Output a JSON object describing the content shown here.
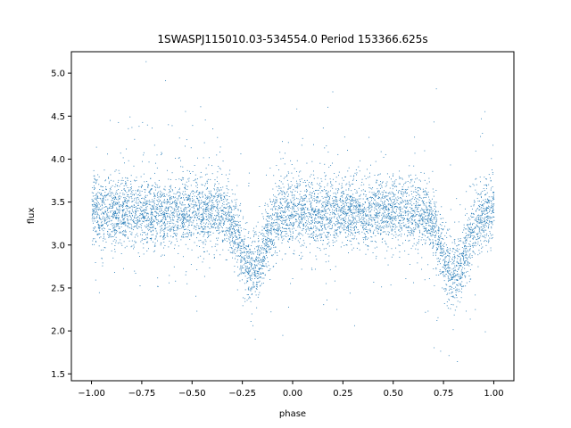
{
  "chart_data": {
    "type": "scatter",
    "title": "1SWASPJ115010.03-534554.0 Period 153366.625s",
    "xlabel": "phase",
    "ylabel": "flux",
    "xlim": [
      -1.1,
      1.1
    ],
    "ylim": [
      1.42,
      5.25
    ],
    "x_ticks": [
      -1.0,
      -0.75,
      -0.5,
      -0.25,
      0.0,
      0.25,
      0.5,
      0.75,
      1.0
    ],
    "x_tick_labels": [
      "−1.00",
      "−0.75",
      "−0.50",
      "−0.25",
      "0.00",
      "0.25",
      "0.50",
      "0.75",
      "1.00"
    ],
    "y_ticks": [
      1.5,
      2.0,
      2.5,
      3.0,
      3.5,
      4.0,
      4.5,
      5.0
    ],
    "y_tick_labels": [
      "1.5",
      "2.0",
      "2.5",
      "3.0",
      "3.5",
      "4.0",
      "4.5",
      "5.0"
    ],
    "grid": false,
    "series": [
      {
        "color": "#1f77b4",
        "phase_range": [
          -1.0,
          1.0
        ],
        "baseline_flux": 3.4,
        "scatter_sd": 0.2,
        "eclipse_minima": [
          {
            "phase": -0.2,
            "flux": 2.7
          },
          {
            "phase": 0.8,
            "flux": 2.7
          }
        ],
        "eclipse_half_width": 0.06,
        "x": [
          -1.0,
          -0.9,
          -0.8,
          -0.7,
          -0.6,
          -0.5,
          -0.4,
          -0.3,
          -0.25,
          -0.22,
          -0.2,
          -0.18,
          -0.15,
          -0.1,
          0.0,
          0.1,
          0.2,
          0.3,
          0.4,
          0.5,
          0.6,
          0.7,
          0.75,
          0.78,
          0.8,
          0.82,
          0.85,
          0.9,
          1.0
        ],
        "y": [
          3.4,
          3.42,
          3.4,
          3.38,
          3.4,
          3.38,
          3.4,
          3.38,
          3.2,
          2.9,
          2.7,
          2.85,
          3.2,
          3.38,
          3.42,
          3.4,
          3.42,
          3.38,
          3.4,
          3.38,
          3.4,
          3.38,
          3.2,
          2.9,
          2.7,
          2.85,
          3.2,
          3.38,
          3.42
        ]
      }
    ]
  }
}
